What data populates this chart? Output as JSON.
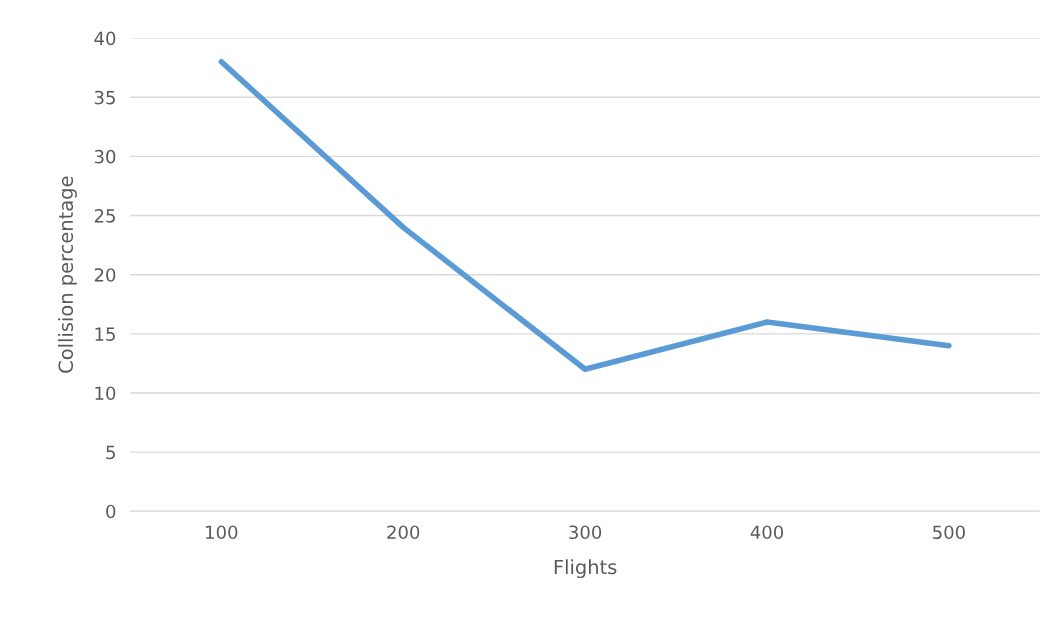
{
  "chart_data": {
    "type": "line",
    "xlabel": "Flights",
    "ylabel": "Collision percentage",
    "categories": [
      "100",
      "200",
      "300",
      "400",
      "500"
    ],
    "series": [
      {
        "color": "#5b9bd5",
        "values": [
          38,
          24,
          12,
          16,
          14
        ]
      }
    ],
    "ylim": [
      0,
      40
    ],
    "yticks": [
      0,
      5,
      10,
      15,
      20,
      25,
      30,
      35,
      40
    ],
    "grid": "y",
    "marker": "none",
    "line_style": "solid",
    "legend": false
  }
}
